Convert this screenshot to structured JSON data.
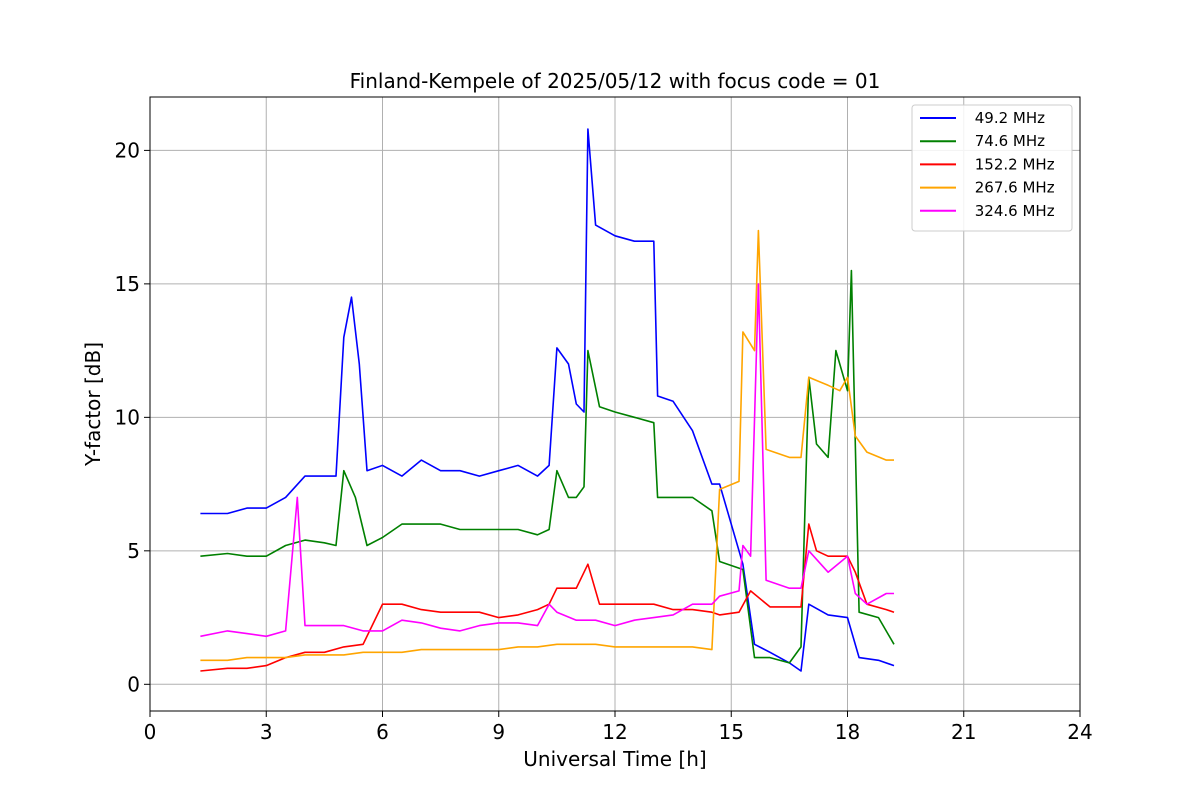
{
  "chart_data": {
    "type": "line",
    "title": "Finland-Kempele of 2025/05/12 with focus code = 01",
    "xlabel": "Universal Time [h]",
    "ylabel": "Y-factor [dB]",
    "xlim": [
      0,
      24
    ],
    "ylim": [
      -1,
      22
    ],
    "xticks": [
      0,
      3,
      6,
      9,
      12,
      15,
      18,
      21,
      24
    ],
    "yticks": [
      0,
      5,
      10,
      15,
      20
    ],
    "grid": true,
    "legend_position": "top-right",
    "series": [
      {
        "name": " 49.2 MHz",
        "color": "#0000ff",
        "points": [
          [
            1.3,
            6.4
          ],
          [
            2.0,
            6.4
          ],
          [
            2.5,
            6.6
          ],
          [
            3.0,
            6.6
          ],
          [
            3.5,
            7.0
          ],
          [
            4.0,
            7.8
          ],
          [
            4.5,
            7.8
          ],
          [
            4.8,
            7.8
          ],
          [
            5.0,
            13.0
          ],
          [
            5.2,
            14.5
          ],
          [
            5.4,
            12.0
          ],
          [
            5.6,
            8.0
          ],
          [
            6.0,
            8.2
          ],
          [
            6.5,
            7.8
          ],
          [
            7.0,
            8.4
          ],
          [
            7.5,
            8.0
          ],
          [
            8.0,
            8.0
          ],
          [
            8.5,
            7.8
          ],
          [
            9.0,
            8.0
          ],
          [
            9.5,
            8.2
          ],
          [
            10.0,
            7.8
          ],
          [
            10.3,
            8.2
          ],
          [
            10.5,
            12.6
          ],
          [
            10.8,
            12.0
          ],
          [
            11.0,
            10.5
          ],
          [
            11.2,
            10.2
          ],
          [
            11.3,
            20.8
          ],
          [
            11.5,
            17.2
          ],
          [
            12.0,
            16.8
          ],
          [
            12.5,
            16.6
          ],
          [
            13.0,
            16.6
          ],
          [
            13.1,
            10.8
          ],
          [
            13.5,
            10.6
          ],
          [
            14.0,
            9.5
          ],
          [
            14.5,
            7.5
          ],
          [
            14.7,
            7.5
          ],
          [
            15.3,
            4.5
          ],
          [
            15.6,
            1.5
          ],
          [
            16.0,
            1.2
          ],
          [
            16.5,
            0.8
          ],
          [
            16.8,
            0.5
          ],
          [
            17.0,
            3.0
          ],
          [
            17.5,
            2.6
          ],
          [
            18.0,
            2.5
          ],
          [
            18.3,
            1.0
          ],
          [
            18.8,
            0.9
          ],
          [
            19.2,
            0.7
          ]
        ]
      },
      {
        "name": " 74.6 MHz",
        "color": "#008000",
        "points": [
          [
            1.3,
            4.8
          ],
          [
            2.0,
            4.9
          ],
          [
            2.5,
            4.8
          ],
          [
            3.0,
            4.8
          ],
          [
            3.5,
            5.2
          ],
          [
            4.0,
            5.4
          ],
          [
            4.5,
            5.3
          ],
          [
            4.8,
            5.2
          ],
          [
            5.0,
            8.0
          ],
          [
            5.3,
            7.0
          ],
          [
            5.6,
            5.2
          ],
          [
            6.0,
            5.5
          ],
          [
            6.5,
            6.0
          ],
          [
            7.0,
            6.0
          ],
          [
            7.5,
            6.0
          ],
          [
            8.0,
            5.8
          ],
          [
            8.5,
            5.8
          ],
          [
            9.0,
            5.8
          ],
          [
            9.5,
            5.8
          ],
          [
            10.0,
            5.6
          ],
          [
            10.3,
            5.8
          ],
          [
            10.5,
            8.0
          ],
          [
            10.8,
            7.0
          ],
          [
            11.0,
            7.0
          ],
          [
            11.2,
            7.4
          ],
          [
            11.3,
            12.5
          ],
          [
            11.6,
            10.4
          ],
          [
            12.0,
            10.2
          ],
          [
            12.5,
            10.0
          ],
          [
            13.0,
            9.8
          ],
          [
            13.1,
            7.0
          ],
          [
            13.5,
            7.0
          ],
          [
            14.0,
            7.0
          ],
          [
            14.5,
            6.5
          ],
          [
            14.7,
            4.6
          ],
          [
            15.3,
            4.3
          ],
          [
            15.6,
            1.0
          ],
          [
            16.0,
            1.0
          ],
          [
            16.5,
            0.8
          ],
          [
            16.8,
            1.4
          ],
          [
            17.0,
            11.5
          ],
          [
            17.2,
            9.0
          ],
          [
            17.5,
            8.5
          ],
          [
            17.7,
            12.5
          ],
          [
            18.0,
            11.0
          ],
          [
            18.1,
            15.5
          ],
          [
            18.3,
            2.7
          ],
          [
            18.8,
            2.5
          ],
          [
            19.2,
            1.5
          ]
        ]
      },
      {
        "name": " 152.2 MHz",
        "color": "#ff0000",
        "points": [
          [
            1.3,
            0.5
          ],
          [
            2.0,
            0.6
          ],
          [
            2.5,
            0.6
          ],
          [
            3.0,
            0.7
          ],
          [
            3.5,
            1.0
          ],
          [
            4.0,
            1.2
          ],
          [
            4.5,
            1.2
          ],
          [
            5.0,
            1.4
          ],
          [
            5.5,
            1.5
          ],
          [
            6.0,
            3.0
          ],
          [
            6.5,
            3.0
          ],
          [
            7.0,
            2.8
          ],
          [
            7.5,
            2.7
          ],
          [
            8.0,
            2.7
          ],
          [
            8.5,
            2.7
          ],
          [
            9.0,
            2.5
          ],
          [
            9.5,
            2.6
          ],
          [
            10.0,
            2.8
          ],
          [
            10.3,
            3.0
          ],
          [
            10.5,
            3.6
          ],
          [
            11.0,
            3.6
          ],
          [
            11.3,
            4.5
          ],
          [
            11.6,
            3.0
          ],
          [
            12.0,
            3.0
          ],
          [
            12.5,
            3.0
          ],
          [
            13.0,
            3.0
          ],
          [
            13.5,
            2.8
          ],
          [
            14.0,
            2.8
          ],
          [
            14.5,
            2.7
          ],
          [
            14.7,
            2.6
          ],
          [
            15.2,
            2.7
          ],
          [
            15.5,
            3.5
          ],
          [
            16.0,
            2.9
          ],
          [
            16.5,
            2.9
          ],
          [
            16.8,
            2.9
          ],
          [
            17.0,
            6.0
          ],
          [
            17.2,
            5.0
          ],
          [
            17.5,
            4.8
          ],
          [
            18.0,
            4.8
          ],
          [
            18.2,
            4.2
          ],
          [
            18.5,
            3.0
          ],
          [
            19.0,
            2.8
          ],
          [
            19.2,
            2.7
          ]
        ]
      },
      {
        "name": " 267.6 MHz",
        "color": "#ffa500",
        "points": [
          [
            1.3,
            0.9
          ],
          [
            2.0,
            0.9
          ],
          [
            2.5,
            1.0
          ],
          [
            3.0,
            1.0
          ],
          [
            3.5,
            1.0
          ],
          [
            4.0,
            1.1
          ],
          [
            4.5,
            1.1
          ],
          [
            5.0,
            1.1
          ],
          [
            5.5,
            1.2
          ],
          [
            6.0,
            1.2
          ],
          [
            6.5,
            1.2
          ],
          [
            7.0,
            1.3
          ],
          [
            7.5,
            1.3
          ],
          [
            8.0,
            1.3
          ],
          [
            8.5,
            1.3
          ],
          [
            9.0,
            1.3
          ],
          [
            9.5,
            1.4
          ],
          [
            10.0,
            1.4
          ],
          [
            10.5,
            1.5
          ],
          [
            11.0,
            1.5
          ],
          [
            11.5,
            1.5
          ],
          [
            12.0,
            1.4
          ],
          [
            12.5,
            1.4
          ],
          [
            13.0,
            1.4
          ],
          [
            13.5,
            1.4
          ],
          [
            14.0,
            1.4
          ],
          [
            14.5,
            1.3
          ],
          [
            14.7,
            7.3
          ],
          [
            15.2,
            7.6
          ],
          [
            15.3,
            13.2
          ],
          [
            15.6,
            12.5
          ],
          [
            15.7,
            17.0
          ],
          [
            15.9,
            8.8
          ],
          [
            16.5,
            8.5
          ],
          [
            16.8,
            8.5
          ],
          [
            17.0,
            11.5
          ],
          [
            17.5,
            11.2
          ],
          [
            17.8,
            11.0
          ],
          [
            18.0,
            11.5
          ],
          [
            18.2,
            9.3
          ],
          [
            18.5,
            8.7
          ],
          [
            19.0,
            8.4
          ],
          [
            19.2,
            8.4
          ]
        ]
      },
      {
        "name": " 324.6 MHz",
        "color": "#ff00ff",
        "points": [
          [
            1.3,
            1.8
          ],
          [
            2.0,
            2.0
          ],
          [
            2.5,
            1.9
          ],
          [
            3.0,
            1.8
          ],
          [
            3.5,
            2.0
          ],
          [
            3.8,
            7.0
          ],
          [
            4.0,
            2.2
          ],
          [
            4.5,
            2.2
          ],
          [
            5.0,
            2.2
          ],
          [
            5.5,
            2.0
          ],
          [
            6.0,
            2.0
          ],
          [
            6.5,
            2.4
          ],
          [
            7.0,
            2.3
          ],
          [
            7.5,
            2.1
          ],
          [
            8.0,
            2.0
          ],
          [
            8.5,
            2.2
          ],
          [
            9.0,
            2.3
          ],
          [
            9.5,
            2.3
          ],
          [
            10.0,
            2.2
          ],
          [
            10.3,
            3.0
          ],
          [
            10.5,
            2.7
          ],
          [
            11.0,
            2.4
          ],
          [
            11.5,
            2.4
          ],
          [
            12.0,
            2.2
          ],
          [
            12.5,
            2.4
          ],
          [
            13.0,
            2.5
          ],
          [
            13.5,
            2.6
          ],
          [
            14.0,
            3.0
          ],
          [
            14.5,
            3.0
          ],
          [
            14.7,
            3.3
          ],
          [
            15.2,
            3.5
          ],
          [
            15.3,
            5.2
          ],
          [
            15.5,
            4.8
          ],
          [
            15.7,
            15.0
          ],
          [
            15.9,
            3.9
          ],
          [
            16.5,
            3.6
          ],
          [
            16.8,
            3.6
          ],
          [
            17.0,
            5.0
          ],
          [
            17.5,
            4.2
          ],
          [
            18.0,
            4.8
          ],
          [
            18.2,
            3.4
          ],
          [
            18.5,
            3.0
          ],
          [
            19.0,
            3.4
          ],
          [
            19.2,
            3.4
          ]
        ]
      }
    ]
  }
}
